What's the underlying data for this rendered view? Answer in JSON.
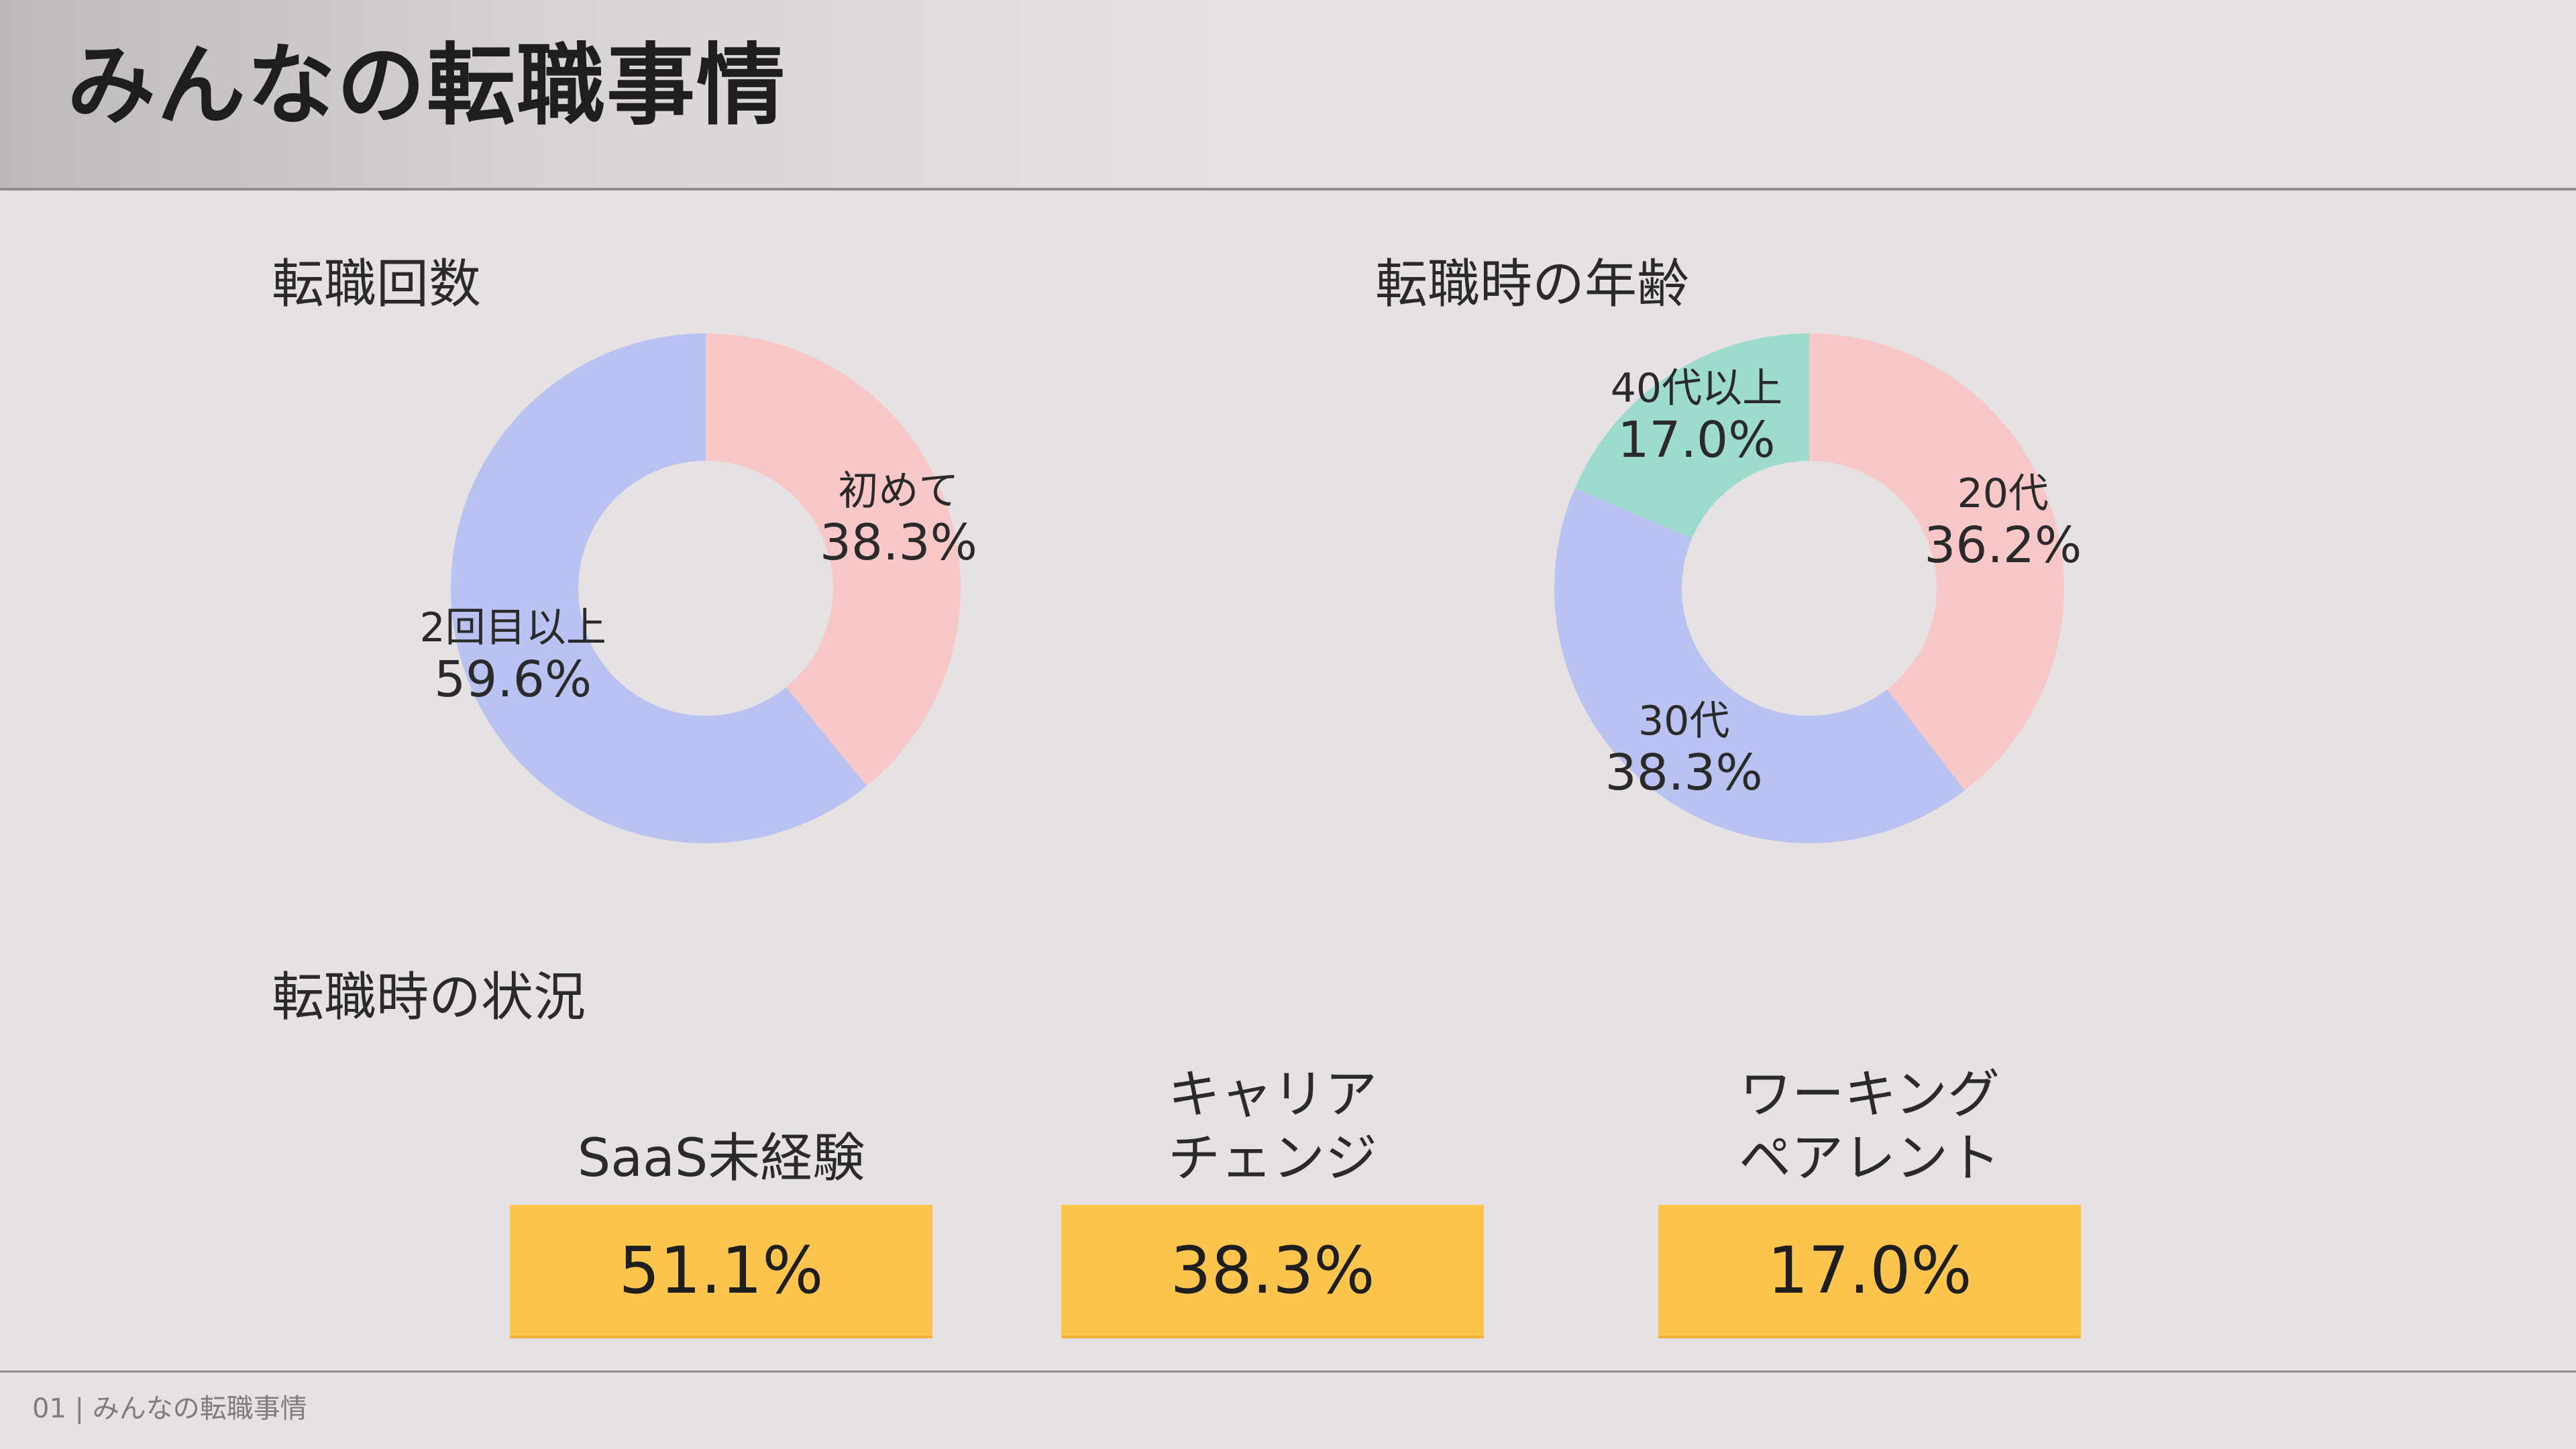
{
  "header": {
    "title": "みんなの転職事情"
  },
  "sections": {
    "count_title": "転職回数",
    "age_title": "転職時の年齢",
    "situation_title": "転職時の状況"
  },
  "colors": {
    "pink": "#f8c8c8",
    "lavender": "#b9c2f0",
    "mint": "#9ddccd",
    "yellow": "#fdc54d",
    "background": "#e6e2e4"
  },
  "chart_data": [
    {
      "type": "pie",
      "title": "転職回数",
      "donut": true,
      "start": "top",
      "direction": "clockwise",
      "slices": [
        {
          "label": "初めて",
          "value": 38.3,
          "display": "38.3%",
          "color": "#f8c8c8"
        },
        {
          "label": "2回目以上",
          "value": 59.6,
          "display": "59.6%",
          "color": "#b9c2f0"
        }
      ]
    },
    {
      "type": "pie",
      "title": "転職時の年齢",
      "donut": true,
      "start": "top",
      "direction": "clockwise",
      "slices": [
        {
          "label": "20代",
          "value": 36.2,
          "display": "36.2%",
          "color": "#f8c8c8"
        },
        {
          "label": "30代",
          "value": 38.3,
          "display": "38.3%",
          "color": "#b9c2f0"
        },
        {
          "label": "40代以上",
          "value": 17.0,
          "display": "17.0%",
          "color": "#9ddccd"
        }
      ]
    }
  ],
  "situation": {
    "items": [
      {
        "label": "SaaS未経験",
        "value": "51.1%"
      },
      {
        "label": "キャリア\nチェンジ",
        "value": "38.3%"
      },
      {
        "label": "ワーキング\nペアレント",
        "value": "17.0%"
      }
    ]
  },
  "footer": {
    "text": "01 | みんなの転職事情"
  }
}
